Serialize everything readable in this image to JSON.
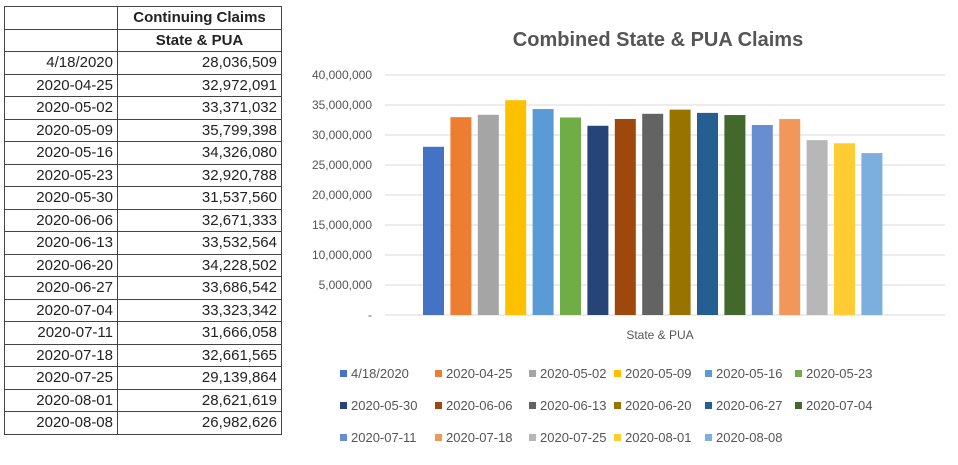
{
  "table": {
    "header1": "Continuing Claims",
    "header2": "State & PUA",
    "rows": [
      [
        "4/18/2020",
        "28,036,509"
      ],
      [
        "2020-04-25",
        "32,972,091"
      ],
      [
        "2020-05-02",
        "33,371,032"
      ],
      [
        "2020-05-09",
        "35,799,398"
      ],
      [
        "2020-05-16",
        "34,326,080"
      ],
      [
        "2020-05-23",
        "32,920,788"
      ],
      [
        "2020-05-30",
        "31,537,560"
      ],
      [
        "2020-06-06",
        "32,671,333"
      ],
      [
        "2020-06-13",
        "33,532,564"
      ],
      [
        "2020-06-20",
        "34,228,502"
      ],
      [
        "2020-06-27",
        "33,686,542"
      ],
      [
        "2020-07-04",
        "33,323,342"
      ],
      [
        "2020-07-11",
        "31,666,058"
      ],
      [
        "2020-07-18",
        "32,661,565"
      ],
      [
        "2020-07-25",
        "29,139,864"
      ],
      [
        "2020-08-01",
        "28,621,619"
      ],
      [
        "2020-08-08",
        "26,982,626"
      ]
    ]
  },
  "chart_data": {
    "type": "bar",
    "title": "Combined State & PUA Claims",
    "categories": [
      "State & PUA"
    ],
    "xlabel": "",
    "ylabel": "",
    "ylim": [
      0,
      40000000
    ],
    "yticks": [
      "-",
      "5,000,000",
      "10,000,000",
      "15,000,000",
      "20,000,000",
      "25,000,000",
      "30,000,000",
      "35,000,000",
      "40,000,000"
    ],
    "grid": true,
    "legend": "bottom",
    "series": [
      {
        "name": "4/18/2020",
        "values": [
          28036509
        ],
        "color": "#4472C4"
      },
      {
        "name": "2020-04-25",
        "values": [
          32972091
        ],
        "color": "#ED7D31"
      },
      {
        "name": "2020-05-02",
        "values": [
          33371032
        ],
        "color": "#A5A5A5"
      },
      {
        "name": "2020-05-09",
        "values": [
          35799398
        ],
        "color": "#FFC000"
      },
      {
        "name": "2020-05-16",
        "values": [
          34326080
        ],
        "color": "#5B9BD5"
      },
      {
        "name": "2020-05-23",
        "values": [
          32920788
        ],
        "color": "#70AD47"
      },
      {
        "name": "2020-05-30",
        "values": [
          31537560
        ],
        "color": "#264478"
      },
      {
        "name": "2020-06-06",
        "values": [
          32671333
        ],
        "color": "#9E480E"
      },
      {
        "name": "2020-06-13",
        "values": [
          33532564
        ],
        "color": "#636363"
      },
      {
        "name": "2020-06-20",
        "values": [
          34228502
        ],
        "color": "#997300"
      },
      {
        "name": "2020-06-27",
        "values": [
          33686542
        ],
        "color": "#255E91"
      },
      {
        "name": "2020-07-04",
        "values": [
          33323342
        ],
        "color": "#43682B"
      },
      {
        "name": "2020-07-11",
        "values": [
          31666058
        ],
        "color": "#698ED0"
      },
      {
        "name": "2020-07-18",
        "values": [
          32661565
        ],
        "color": "#F1975A"
      },
      {
        "name": "2020-07-25",
        "values": [
          29139864
        ],
        "color": "#B7B7B7"
      },
      {
        "name": "2020-08-01",
        "values": [
          28621619
        ],
        "color": "#FFCD33"
      },
      {
        "name": "2020-08-08",
        "values": [
          26982626
        ],
        "color": "#7CAFDD"
      }
    ]
  }
}
